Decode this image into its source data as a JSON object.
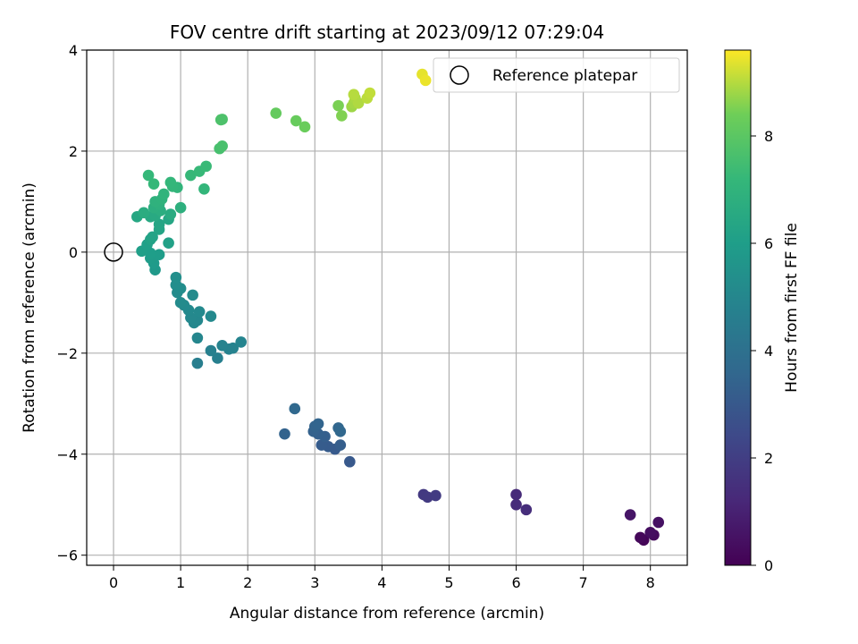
{
  "chart_data": {
    "type": "scatter",
    "title": "FOV centre drift starting at 2023/09/12 07:29:04",
    "xlabel": "Angular distance from reference (arcmin)",
    "ylabel": "Rotation from reference (arcmin)",
    "xlim": [
      -0.4,
      8.55
    ],
    "ylim": [
      -6.2,
      4.0
    ],
    "xticks": [
      0,
      1,
      2,
      3,
      4,
      5,
      6,
      7,
      8
    ],
    "yticks": [
      -6,
      -4,
      -2,
      0,
      2,
      4
    ],
    "grid": true,
    "legend": {
      "placement": "top-right",
      "entries": [
        "Reference platepar"
      ]
    },
    "reference_point": {
      "x": 0,
      "y": 0,
      "label": "Reference platepar"
    },
    "colorbar": {
      "label": "Hours from first FF file",
      "colormap": "viridis",
      "range": [
        0,
        9.6
      ],
      "ticks": [
        0,
        2,
        4,
        6,
        8
      ]
    },
    "points": [
      {
        "x": 7.9,
        "y": -5.7,
        "h": 0.1
      },
      {
        "x": 7.85,
        "y": -5.65,
        "h": 0.2
      },
      {
        "x": 8.05,
        "y": -5.6,
        "h": 0.3
      },
      {
        "x": 8.0,
        "y": -5.55,
        "h": 0.4
      },
      {
        "x": 8.12,
        "y": -5.35,
        "h": 0.5
      },
      {
        "x": 7.7,
        "y": -5.2,
        "h": 0.6
      },
      {
        "x": 6.0,
        "y": -4.8,
        "h": 1.3
      },
      {
        "x": 6.0,
        "y": -5.0,
        "h": 1.35
      },
      {
        "x": 6.15,
        "y": -5.1,
        "h": 1.4
      },
      {
        "x": 4.62,
        "y": -4.8,
        "h": 1.8
      },
      {
        "x": 4.68,
        "y": -4.85,
        "h": 1.85
      },
      {
        "x": 4.8,
        "y": -4.82,
        "h": 1.9
      },
      {
        "x": 3.52,
        "y": -4.15,
        "h": 3.0
      },
      {
        "x": 3.3,
        "y": -3.9,
        "h": 3.05
      },
      {
        "x": 3.2,
        "y": -3.85,
        "h": 3.1
      },
      {
        "x": 3.1,
        "y": -3.82,
        "h": 3.15
      },
      {
        "x": 3.38,
        "y": -3.82,
        "h": 3.2
      },
      {
        "x": 3.15,
        "y": -3.65,
        "h": 3.25
      },
      {
        "x": 3.05,
        "y": -3.6,
        "h": 3.3
      },
      {
        "x": 2.98,
        "y": -3.55,
        "h": 3.35
      },
      {
        "x": 2.55,
        "y": -3.6,
        "h": 3.4
      },
      {
        "x": 3.0,
        "y": -3.45,
        "h": 3.45
      },
      {
        "x": 3.05,
        "y": -3.4,
        "h": 3.5
      },
      {
        "x": 3.35,
        "y": -3.48,
        "h": 3.55
      },
      {
        "x": 3.38,
        "y": -3.55,
        "h": 3.6
      },
      {
        "x": 2.7,
        "y": -3.1,
        "h": 3.65
      },
      {
        "x": 1.25,
        "y": -2.2,
        "h": 4.6
      },
      {
        "x": 1.55,
        "y": -2.1,
        "h": 4.65
      },
      {
        "x": 1.45,
        "y": -1.95,
        "h": 4.7
      },
      {
        "x": 1.72,
        "y": -1.92,
        "h": 4.75
      },
      {
        "x": 1.78,
        "y": -1.9,
        "h": 4.8
      },
      {
        "x": 1.62,
        "y": -1.85,
        "h": 4.85
      },
      {
        "x": 1.9,
        "y": -1.78,
        "h": 4.9
      },
      {
        "x": 1.25,
        "y": -1.7,
        "h": 4.95
      },
      {
        "x": 1.2,
        "y": -1.4,
        "h": 5.0
      },
      {
        "x": 1.25,
        "y": -1.35,
        "h": 5.02
      },
      {
        "x": 1.15,
        "y": -1.3,
        "h": 5.05
      },
      {
        "x": 1.45,
        "y": -1.27,
        "h": 5.08
      },
      {
        "x": 1.28,
        "y": -1.18,
        "h": 5.1
      },
      {
        "x": 1.12,
        "y": -1.15,
        "h": 5.12
      },
      {
        "x": 1.05,
        "y": -1.05,
        "h": 5.15
      },
      {
        "x": 1.0,
        "y": -1.0,
        "h": 5.18
      },
      {
        "x": 1.18,
        "y": -0.85,
        "h": 5.2
      },
      {
        "x": 0.95,
        "y": -0.8,
        "h": 5.22
      },
      {
        "x": 1.0,
        "y": -0.72,
        "h": 5.25
      },
      {
        "x": 0.93,
        "y": -0.65,
        "h": 5.3
      },
      {
        "x": 0.93,
        "y": -0.5,
        "h": 5.35
      },
      {
        "x": 0.62,
        "y": -0.35,
        "h": 5.8
      },
      {
        "x": 0.6,
        "y": -0.22,
        "h": 5.85
      },
      {
        "x": 0.55,
        "y": -0.12,
        "h": 5.9
      },
      {
        "x": 0.68,
        "y": -0.05,
        "h": 5.95
      },
      {
        "x": 0.55,
        "y": -0.02,
        "h": 6.0
      },
      {
        "x": 0.42,
        "y": 0.02,
        "h": 6.05
      },
      {
        "x": 0.5,
        "y": 0.15,
        "h": 6.1
      },
      {
        "x": 0.82,
        "y": 0.18,
        "h": 6.15
      },
      {
        "x": 0.55,
        "y": 0.25,
        "h": 6.2
      },
      {
        "x": 0.58,
        "y": 0.3,
        "h": 6.25
      },
      {
        "x": 0.68,
        "y": 0.45,
        "h": 6.3
      },
      {
        "x": 0.68,
        "y": 0.55,
        "h": 6.35
      },
      {
        "x": 0.82,
        "y": 0.65,
        "h": 6.4
      },
      {
        "x": 0.35,
        "y": 0.7,
        "h": 6.45
      },
      {
        "x": 0.55,
        "y": 0.7,
        "h": 6.5
      },
      {
        "x": 0.62,
        "y": 0.72,
        "h": 6.55
      },
      {
        "x": 0.85,
        "y": 0.75,
        "h": 6.6
      },
      {
        "x": 0.45,
        "y": 0.78,
        "h": 6.65
      },
      {
        "x": 0.7,
        "y": 0.82,
        "h": 6.7
      },
      {
        "x": 0.6,
        "y": 0.88,
        "h": 6.75
      },
      {
        "x": 1.0,
        "y": 0.88,
        "h": 6.8
      },
      {
        "x": 0.68,
        "y": 0.95,
        "h": 6.85
      },
      {
        "x": 0.62,
        "y": 1.0,
        "h": 6.9
      },
      {
        "x": 0.72,
        "y": 1.05,
        "h": 6.95
      },
      {
        "x": 0.75,
        "y": 1.15,
        "h": 7.0
      },
      {
        "x": 0.95,
        "y": 1.28,
        "h": 7.05
      },
      {
        "x": 1.35,
        "y": 1.25,
        "h": 7.1
      },
      {
        "x": 0.88,
        "y": 1.3,
        "h": 7.12
      },
      {
        "x": 0.85,
        "y": 1.38,
        "h": 7.15
      },
      {
        "x": 0.6,
        "y": 1.35,
        "h": 7.18
      },
      {
        "x": 0.52,
        "y": 1.52,
        "h": 7.2
      },
      {
        "x": 1.15,
        "y": 1.52,
        "h": 7.22
      },
      {
        "x": 1.28,
        "y": 1.6,
        "h": 7.25
      },
      {
        "x": 1.38,
        "y": 1.7,
        "h": 7.28
      },
      {
        "x": 1.58,
        "y": 2.05,
        "h": 7.6
      },
      {
        "x": 1.62,
        "y": 2.1,
        "h": 7.65
      },
      {
        "x": 1.6,
        "y": 2.62,
        "h": 7.7
      },
      {
        "x": 1.62,
        "y": 2.63,
        "h": 7.72
      },
      {
        "x": 2.42,
        "y": 2.75,
        "h": 8.2
      },
      {
        "x": 2.72,
        "y": 2.6,
        "h": 8.25
      },
      {
        "x": 2.85,
        "y": 2.48,
        "h": 8.3
      },
      {
        "x": 3.35,
        "y": 2.9,
        "h": 8.5
      },
      {
        "x": 3.4,
        "y": 2.7,
        "h": 8.55
      },
      {
        "x": 3.55,
        "y": 2.88,
        "h": 8.8
      },
      {
        "x": 3.58,
        "y": 2.95,
        "h": 8.85
      },
      {
        "x": 3.6,
        "y": 3.05,
        "h": 8.9
      },
      {
        "x": 3.65,
        "y": 2.95,
        "h": 8.95
      },
      {
        "x": 3.58,
        "y": 3.12,
        "h": 9.0
      },
      {
        "x": 3.78,
        "y": 3.05,
        "h": 9.05
      },
      {
        "x": 3.82,
        "y": 3.15,
        "h": 9.1
      },
      {
        "x": 4.6,
        "y": 3.52,
        "h": 9.4
      },
      {
        "x": 4.65,
        "y": 3.4,
        "h": 9.45
      }
    ]
  }
}
